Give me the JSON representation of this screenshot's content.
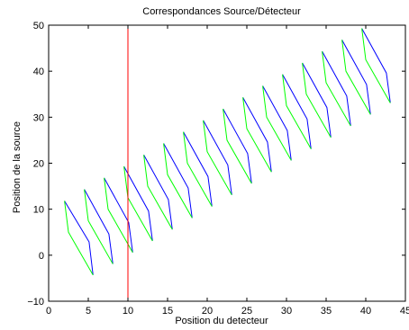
{
  "chart_data": {
    "type": "line",
    "title": "Correspondances Source/Détecteur",
    "xlabel": "Position du detecteur",
    "ylabel": "Position de la source",
    "xlim": [
      0,
      45
    ],
    "ylim": [
      -10,
      50
    ],
    "xticks": [
      "0",
      "5",
      "10",
      "15",
      "20",
      "25",
      "30",
      "35",
      "40",
      "45"
    ],
    "yticks": [
      "−10",
      "0",
      "10",
      "20",
      "30",
      "40",
      "50"
    ],
    "xtick_values": [
      0,
      5,
      10,
      15,
      20,
      25,
      30,
      35,
      40,
      45
    ],
    "ytick_values": [
      -10,
      0,
      10,
      20,
      30,
      40,
      50
    ],
    "grid": false,
    "colors": {
      "blue": "#0000ff",
      "green": "#00ff00",
      "red": "#ff0000"
    },
    "vertical_line": {
      "x": 10,
      "color": "#ff0000"
    },
    "series": [
      {
        "color": "#0000ff",
        "points": [
          [
            2.0,
            11.8
          ],
          [
            5.1,
            2.9
          ],
          [
            5.6,
            -4.3
          ]
        ]
      },
      {
        "color": "#00ff00",
        "points": [
          [
            2.0,
            11.8
          ],
          [
            2.5,
            5.0
          ],
          [
            5.6,
            -4.3
          ]
        ]
      },
      {
        "color": "#0000ff",
        "points": [
          [
            4.5,
            14.3
          ],
          [
            7.6,
            4.6
          ],
          [
            8.1,
            -1.9
          ]
        ]
      },
      {
        "color": "#00ff00",
        "points": [
          [
            4.5,
            14.3
          ],
          [
            5.0,
            7.5
          ],
          [
            8.1,
            -1.9
          ]
        ]
      },
      {
        "color": "#0000ff",
        "points": [
          [
            7.0,
            16.8
          ],
          [
            10.1,
            7.1
          ],
          [
            10.6,
            0.6
          ]
        ]
      },
      {
        "color": "#00ff00",
        "points": [
          [
            7.0,
            16.8
          ],
          [
            7.5,
            10.0
          ],
          [
            10.6,
            0.6
          ]
        ]
      },
      {
        "color": "#0000ff",
        "points": [
          [
            9.5,
            19.3
          ],
          [
            12.6,
            9.6
          ],
          [
            13.1,
            3.1
          ]
        ]
      },
      {
        "color": "#00ff00",
        "points": [
          [
            9.5,
            19.3
          ],
          [
            10.0,
            12.5
          ],
          [
            13.1,
            3.1
          ]
        ]
      },
      {
        "color": "#0000ff",
        "points": [
          [
            12.0,
            21.8
          ],
          [
            15.1,
            12.1
          ],
          [
            15.6,
            5.6
          ]
        ]
      },
      {
        "color": "#00ff00",
        "points": [
          [
            12.0,
            21.8
          ],
          [
            12.5,
            15.0
          ],
          [
            15.6,
            5.6
          ]
        ]
      },
      {
        "color": "#0000ff",
        "points": [
          [
            14.5,
            24.3
          ],
          [
            17.6,
            14.6
          ],
          [
            18.1,
            8.1
          ]
        ]
      },
      {
        "color": "#00ff00",
        "points": [
          [
            14.5,
            24.3
          ],
          [
            15.0,
            17.5
          ],
          [
            18.1,
            8.1
          ]
        ]
      },
      {
        "color": "#0000ff",
        "points": [
          [
            17.0,
            26.8
          ],
          [
            20.1,
            17.1
          ],
          [
            20.6,
            10.6
          ]
        ]
      },
      {
        "color": "#00ff00",
        "points": [
          [
            17.0,
            26.8
          ],
          [
            17.5,
            20.0
          ],
          [
            20.6,
            10.6
          ]
        ]
      },
      {
        "color": "#0000ff",
        "points": [
          [
            19.5,
            29.3
          ],
          [
            22.6,
            19.6
          ],
          [
            23.1,
            13.1
          ]
        ]
      },
      {
        "color": "#00ff00",
        "points": [
          [
            19.5,
            29.3
          ],
          [
            20.0,
            22.5
          ],
          [
            23.1,
            13.1
          ]
        ]
      },
      {
        "color": "#0000ff",
        "points": [
          [
            22.0,
            31.8
          ],
          [
            25.1,
            22.1
          ],
          [
            25.6,
            15.6
          ]
        ]
      },
      {
        "color": "#00ff00",
        "points": [
          [
            22.0,
            31.8
          ],
          [
            22.5,
            25.0
          ],
          [
            25.6,
            15.6
          ]
        ]
      },
      {
        "color": "#0000ff",
        "points": [
          [
            24.5,
            34.3
          ],
          [
            27.6,
            24.6
          ],
          [
            28.1,
            18.1
          ]
        ]
      },
      {
        "color": "#00ff00",
        "points": [
          [
            24.5,
            34.3
          ],
          [
            25.0,
            27.5
          ],
          [
            28.1,
            18.1
          ]
        ]
      },
      {
        "color": "#0000ff",
        "points": [
          [
            27.0,
            36.8
          ],
          [
            30.1,
            27.1
          ],
          [
            30.6,
            20.6
          ]
        ]
      },
      {
        "color": "#00ff00",
        "points": [
          [
            27.0,
            36.8
          ],
          [
            27.5,
            30.0
          ],
          [
            30.6,
            20.6
          ]
        ]
      },
      {
        "color": "#0000ff",
        "points": [
          [
            29.5,
            39.3
          ],
          [
            32.6,
            29.6
          ],
          [
            33.1,
            23.1
          ]
        ]
      },
      {
        "color": "#00ff00",
        "points": [
          [
            29.5,
            39.3
          ],
          [
            30.0,
            32.5
          ],
          [
            33.1,
            23.1
          ]
        ]
      },
      {
        "color": "#0000ff",
        "points": [
          [
            32.0,
            41.8
          ],
          [
            35.1,
            32.1
          ],
          [
            35.6,
            25.6
          ]
        ]
      },
      {
        "color": "#00ff00",
        "points": [
          [
            32.0,
            41.8
          ],
          [
            32.5,
            35.0
          ],
          [
            35.6,
            25.6
          ]
        ]
      },
      {
        "color": "#0000ff",
        "points": [
          [
            34.5,
            44.3
          ],
          [
            37.6,
            34.6
          ],
          [
            38.1,
            28.1
          ]
        ]
      },
      {
        "color": "#00ff00",
        "points": [
          [
            34.5,
            44.3
          ],
          [
            35.0,
            37.5
          ],
          [
            38.1,
            28.1
          ]
        ]
      },
      {
        "color": "#0000ff",
        "points": [
          [
            37.0,
            46.8
          ],
          [
            40.1,
            37.1
          ],
          [
            40.6,
            30.6
          ]
        ]
      },
      {
        "color": "#00ff00",
        "points": [
          [
            37.0,
            46.8
          ],
          [
            37.5,
            40.0
          ],
          [
            40.6,
            30.6
          ]
        ]
      },
      {
        "color": "#0000ff",
        "points": [
          [
            39.5,
            49.3
          ],
          [
            42.6,
            39.6
          ],
          [
            43.1,
            33.1
          ]
        ]
      },
      {
        "color": "#00ff00",
        "points": [
          [
            39.5,
            49.3
          ],
          [
            40.0,
            42.5
          ],
          [
            43.1,
            33.1
          ]
        ]
      }
    ]
  }
}
